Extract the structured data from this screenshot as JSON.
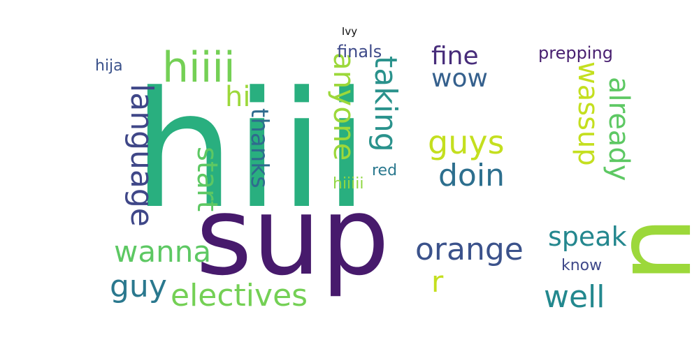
{
  "title": "Ivy",
  "words": [
    {
      "text": "hiii",
      "color": "#29af7f"
    },
    {
      "text": "sup",
      "color": "#471a6c"
    },
    {
      "text": "u",
      "color": "#9cd83a"
    },
    {
      "text": "hiiii",
      "color": "#74d055"
    },
    {
      "text": "language",
      "color": "#3f4788"
    },
    {
      "text": "anyone",
      "color": "#9cd83a"
    },
    {
      "text": "taking",
      "color": "#2a928c"
    },
    {
      "text": "wassup",
      "color": "#c4df1f"
    },
    {
      "text": "already",
      "color": "#5dc863"
    },
    {
      "text": "guys",
      "color": "#c4df1f"
    },
    {
      "text": "doin",
      "color": "#2d6f8e"
    },
    {
      "text": "fine",
      "color": "#472c7a"
    },
    {
      "text": "wow",
      "color": "#35608d"
    },
    {
      "text": "orange",
      "color": "#3b528b"
    },
    {
      "text": "speak",
      "color": "#24878e"
    },
    {
      "text": "well",
      "color": "#23888e"
    },
    {
      "text": "r",
      "color": "#c4df1f"
    },
    {
      "text": "start",
      "color": "#5dc863"
    },
    {
      "text": "wanna",
      "color": "#5dc863"
    },
    {
      "text": "guy",
      "color": "#2a788e"
    },
    {
      "text": "electives",
      "color": "#74d055"
    },
    {
      "text": "thanks",
      "color": "#2f6b8e"
    },
    {
      "text": "hi",
      "color": "#9cd83a"
    },
    {
      "text": "finals",
      "color": "#3e4a89"
    },
    {
      "text": "hija",
      "color": "#3b528b"
    },
    {
      "text": "prepping",
      "color": "#481f70"
    },
    {
      "text": "know",
      "color": "#3f4889"
    },
    {
      "text": "red",
      "color": "#2a788e"
    },
    {
      "text": "hiiiii",
      "color": "#90d743"
    }
  ]
}
